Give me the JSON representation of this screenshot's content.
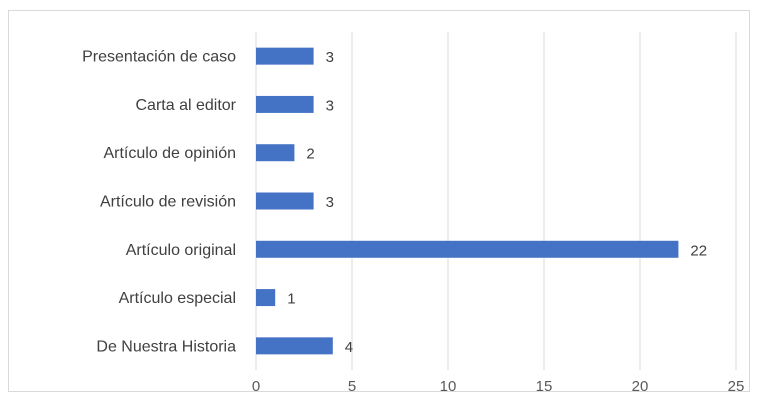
{
  "chart_data": {
    "type": "bar",
    "orientation": "horizontal",
    "categories": [
      "Presentación de caso",
      "Carta al editor",
      "Artículo de opinión",
      "Artículo de revisión",
      "Artículo original",
      "Artículo especial",
      "De Nuestra Historia"
    ],
    "values": [
      3,
      3,
      2,
      3,
      22,
      1,
      4
    ],
    "xlim": [
      0,
      25
    ],
    "x_ticks": [
      "0",
      "5",
      "10",
      "15",
      "20",
      "25"
    ],
    "grid": true,
    "data_labels": true,
    "legend": "none",
    "title": "",
    "xlabel": "",
    "ylabel": "",
    "bar_color": "#4472C4",
    "grid_color": "#d9d9d9"
  }
}
